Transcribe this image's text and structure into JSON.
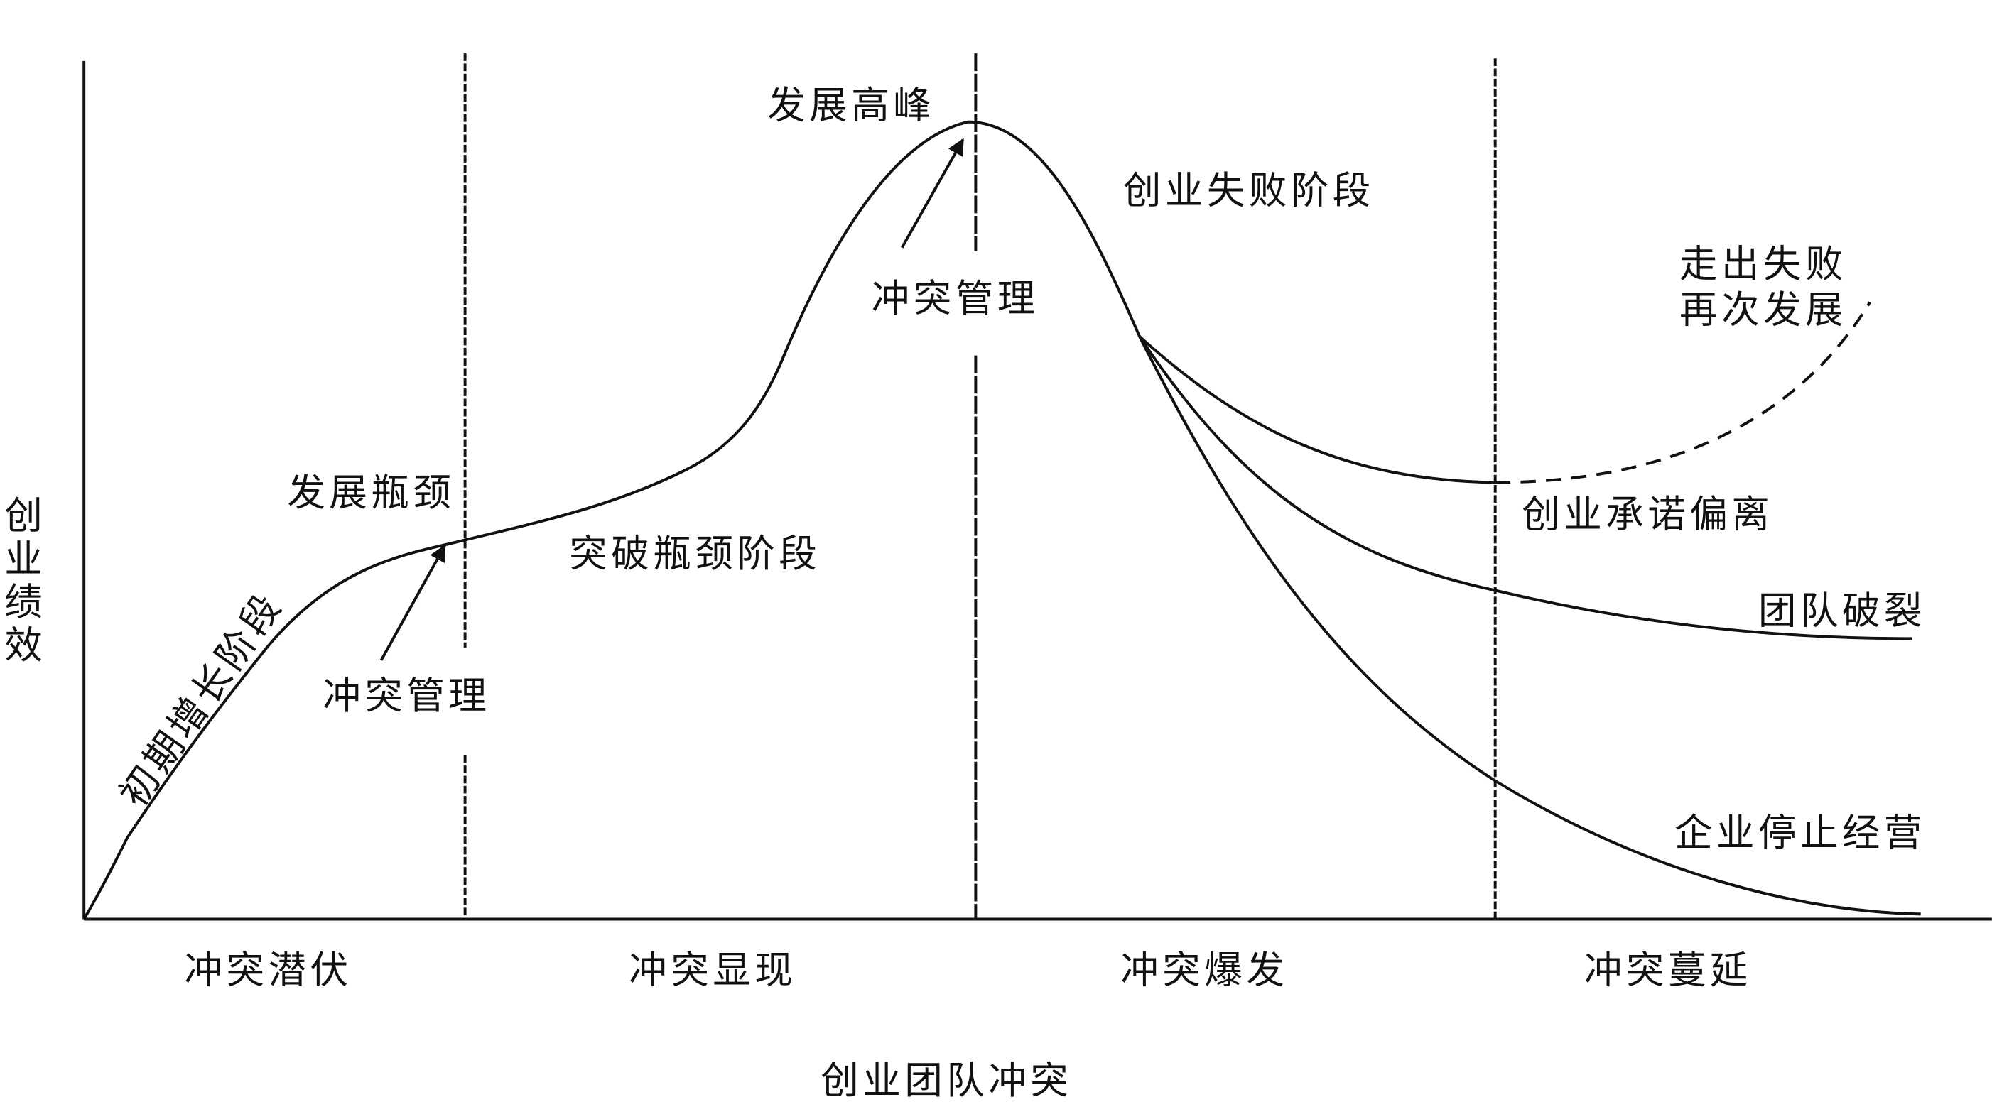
{
  "axes": {
    "y_label": "创业绩效",
    "x_label": "创业团队冲突"
  },
  "phases": [
    "冲突潜伏",
    "冲突显现",
    "冲突爆发",
    "冲突蔓延"
  ],
  "stages": {
    "initial_growth": "初期增长阶段",
    "breakthrough": "突破瓶颈阶段",
    "failure": "创业失败阶段"
  },
  "points": {
    "bottleneck": "发展瓶颈",
    "peak": "发展高峰",
    "conflict_management_1": "冲突管理",
    "conflict_management_2": "冲突管理"
  },
  "outcomes": {
    "recovery": [
      "走出失败",
      "再次发展"
    ],
    "commitment_deviation": "创业承诺偏离",
    "team_breakup": "团队破裂",
    "business_stop": "企业停止经营"
  }
}
